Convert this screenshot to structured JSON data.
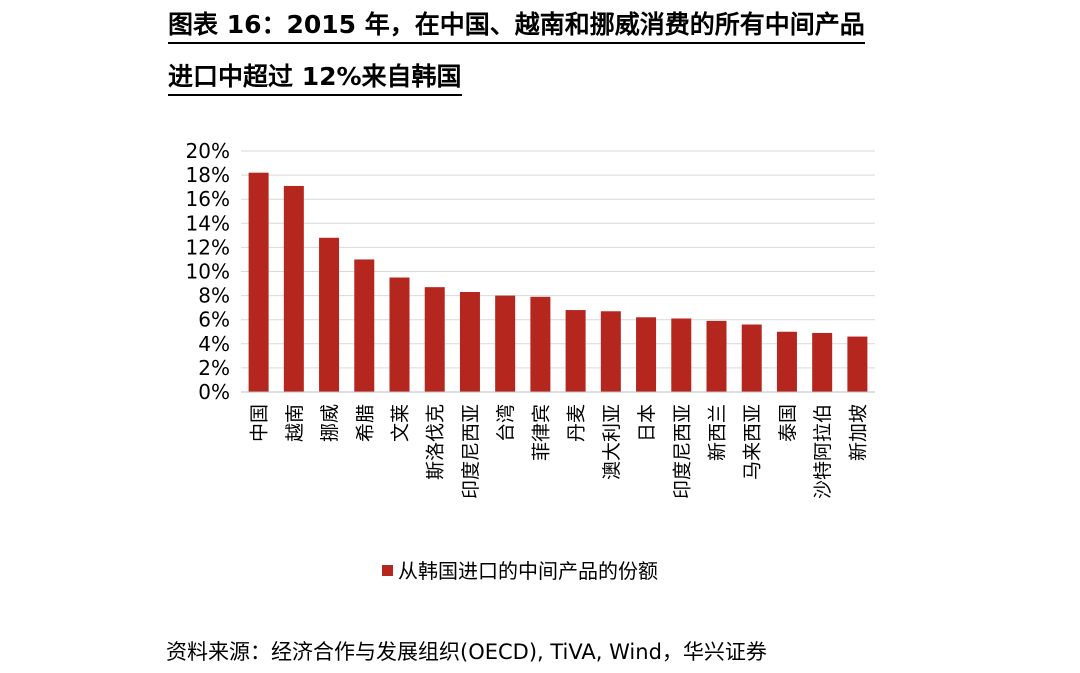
{
  "header": {
    "title_line1": "图表 16：2015 年，在中国、越南和挪威消费的所有中间产品",
    "title_line2": "进口中超过 12%来自韩国"
  },
  "chart_data": {
    "type": "bar",
    "categories": [
      "中国",
      "越南",
      "挪威",
      "希腊",
      "文莱",
      "斯洛伐克",
      "印度尼西亚",
      "台湾",
      "菲律宾",
      "丹麦",
      "澳大利亚",
      "日本",
      "印度尼西亚",
      "新西兰",
      "马来西亚",
      "泰国",
      "沙特阿拉伯",
      "新加坡"
    ],
    "series": [
      {
        "name": "从韩国进口的中间产品的份额",
        "values": [
          18.2,
          17.1,
          12.8,
          11.0,
          9.5,
          8.7,
          8.3,
          8.0,
          7.9,
          6.8,
          6.7,
          6.2,
          6.1,
          5.9,
          5.6,
          5.0,
          4.9,
          4.6
        ]
      }
    ],
    "y_unit": "%",
    "ylim": [
      0,
      20
    ],
    "yticks": [
      "0%",
      "2%",
      "4%",
      "6%",
      "8%",
      "10%",
      "12%",
      "14%",
      "16%",
      "18%",
      "20%"
    ],
    "grid": true,
    "legend_position": "bottom",
    "bar_color": "#b5261e"
  },
  "footer": {
    "source": "资料来源：经济合作与发展组织(OECD), TiVA, Wind，华兴证券"
  }
}
